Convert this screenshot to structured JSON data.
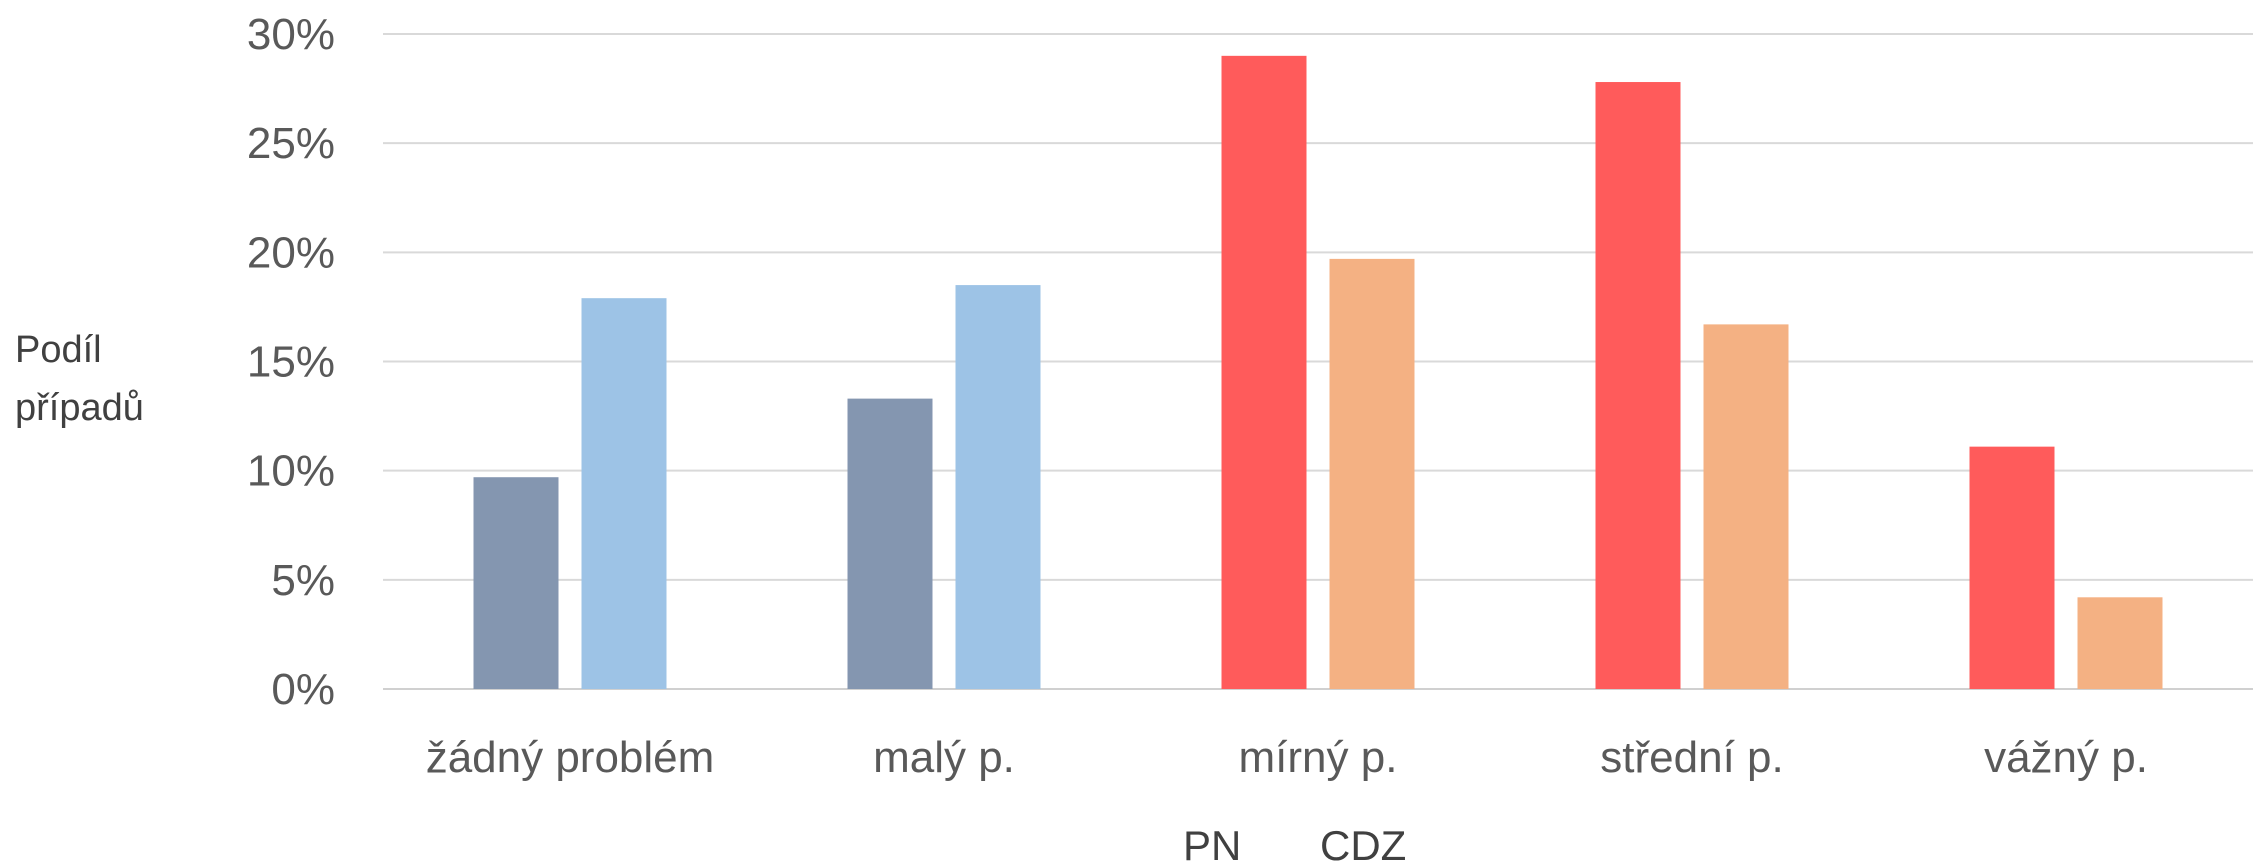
{
  "chart_data": {
    "type": "bar",
    "ylabel": [
      "Podíl",
      "případů"
    ],
    "ylim": [
      0,
      30
    ],
    "yticks": [
      "0%",
      "5%",
      "10%",
      "15%",
      "20%",
      "25%",
      "30%"
    ],
    "grid": true,
    "categories": [
      "žádný problém",
      "malý p.",
      "mírný p.",
      "střední p.",
      "vážný p."
    ],
    "series": [
      {
        "name": "PN",
        "values": [
          9.7,
          13.3,
          29.0,
          27.8,
          11.1
        ]
      },
      {
        "name": "CDZ",
        "values": [
          17.9,
          18.5,
          19.7,
          16.7,
          4.2
        ]
      }
    ],
    "bar_colors": [
      [
        "#8496b0",
        "#9dc3e6"
      ],
      [
        "#8496b0",
        "#9dc3e6"
      ],
      [
        "#ff5b5b",
        "#f4b183"
      ],
      [
        "#ff5b5b",
        "#f4b183"
      ],
      [
        "#ff5b5b",
        "#f4b183"
      ]
    ],
    "gridline_color": "#d9d9d9",
    "legend_position": "bottom"
  }
}
